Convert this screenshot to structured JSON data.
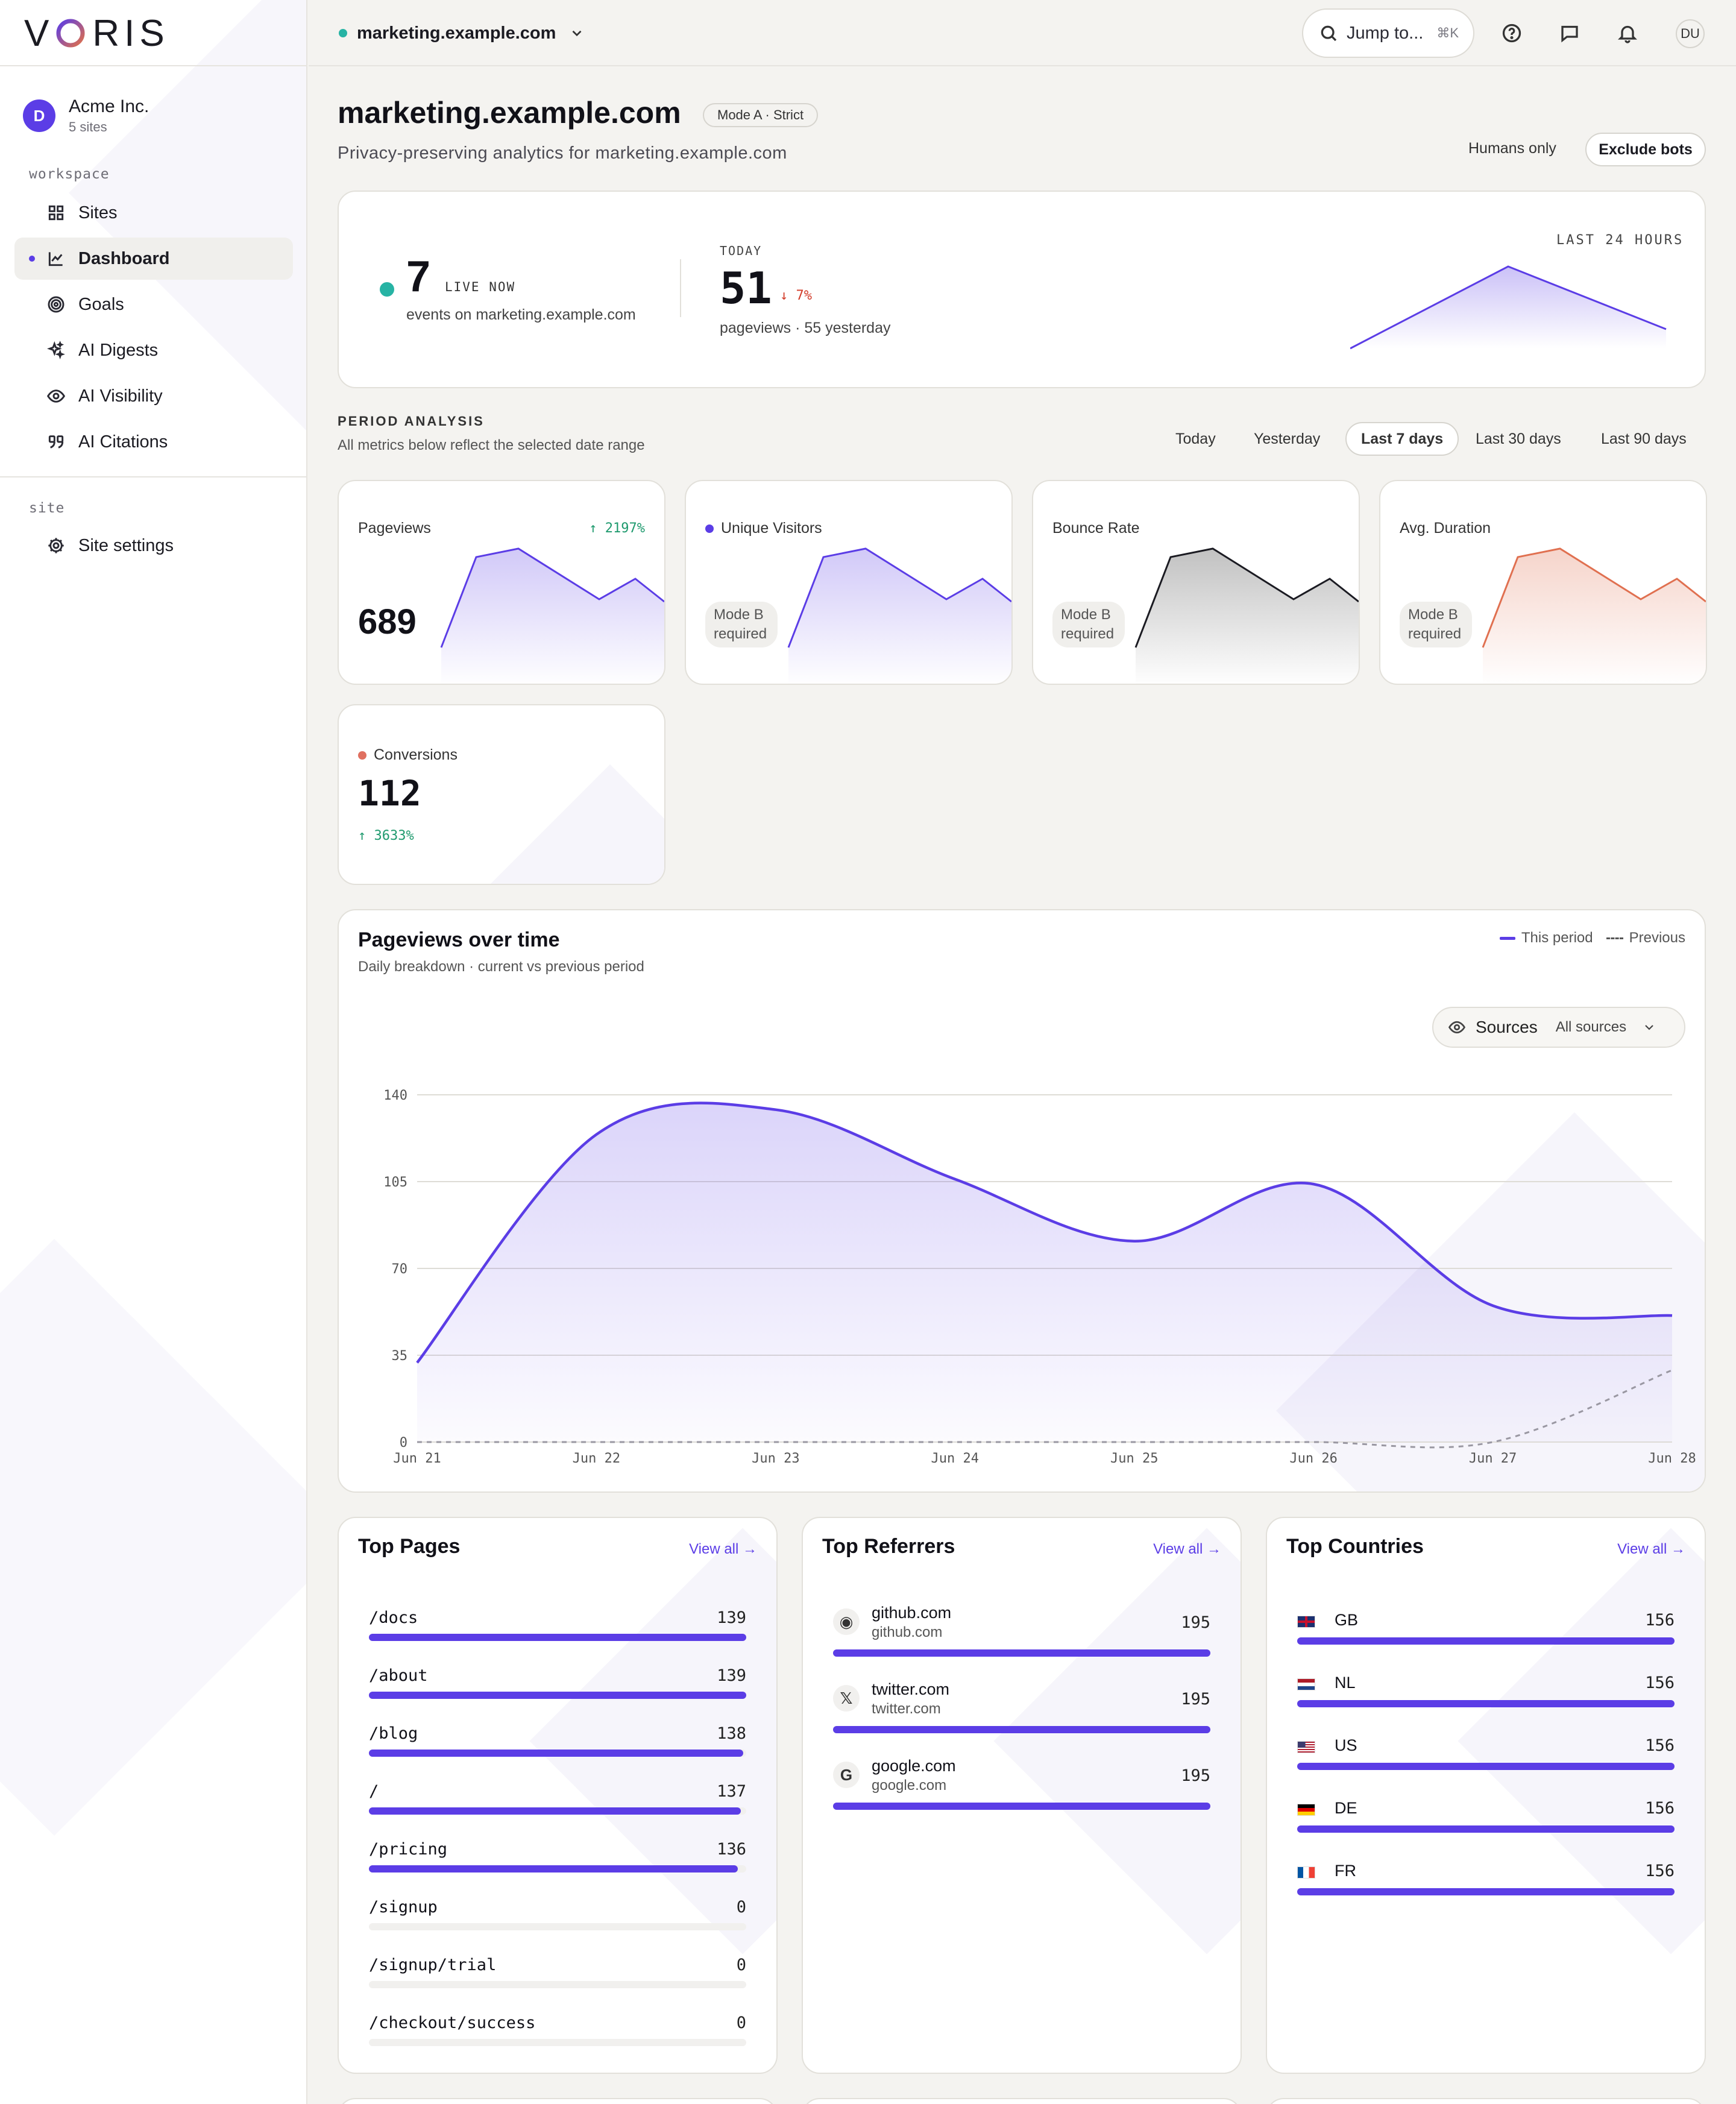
{
  "brand": {
    "name": "VORIS",
    "accent": "#5b3de6"
  },
  "org": {
    "initial": "D",
    "name": "Acme Inc.",
    "sites": "5 sites"
  },
  "sidebar": {
    "workspace_label": "workspace",
    "site_label": "site",
    "items": [
      {
        "label": "Sites",
        "icon": "grid-icon"
      },
      {
        "label": "Dashboard",
        "icon": "chart-line-icon",
        "active": true
      },
      {
        "label": "Goals",
        "icon": "target-icon"
      },
      {
        "label": "AI Digests",
        "icon": "sparkles-icon"
      },
      {
        "label": "AI Visibility",
        "icon": "eye-icon"
      },
      {
        "label": "AI Citations",
        "icon": "quote-icon"
      }
    ],
    "site_items": [
      {
        "label": "Site settings",
        "icon": "gear-icon"
      }
    ]
  },
  "topbar": {
    "site": "marketing.example.com",
    "jump_label": "Jump to...",
    "jump_shortcut": "⌘K",
    "user_initials": "DU"
  },
  "header": {
    "title": "marketing.example.com",
    "mode_badge": "Mode A · Strict",
    "subtitle": "Privacy-preserving analytics for marketing.example.com",
    "humans_only": "Humans only",
    "exclude_bots": "Exclude bots"
  },
  "live": {
    "count": "7",
    "label": "LIVE NOW",
    "sub": "events on marketing.example.com",
    "today_label": "TODAY",
    "today_count": "51",
    "today_delta": "↓ 7%",
    "today_sub": "pageviews · 55 yesterday",
    "last24_label": "LAST 24 HOURS"
  },
  "period": {
    "title": "PERIOD ANALYSIS",
    "subtitle": "All metrics below reflect the selected date range",
    "tabs": [
      "Today",
      "Yesterday",
      "Last 7 days",
      "Last 30 days",
      "Last 90 days"
    ],
    "active_tab": "Last 7 days"
  },
  "metrics": {
    "pageviews": {
      "label": "Pageviews",
      "value": "689",
      "delta": "↑ 2197%"
    },
    "visitors": {
      "label": "Unique Visitors",
      "note": "Mode B required"
    },
    "bounce": {
      "label": "Bounce Rate",
      "note": "Mode B required"
    },
    "duration": {
      "label": "Avg. Duration",
      "note": "Mode B required"
    },
    "conversions": {
      "label": "Conversions",
      "value": "112",
      "delta": "↑ 3633%"
    }
  },
  "pv_chart": {
    "title": "Pageviews over time",
    "subtitle": "Daily breakdown · current vs previous period",
    "legend_current": "This period",
    "legend_previous": "Previous",
    "sources_label": "Sources",
    "sources_value": "All sources"
  },
  "chart_data": {
    "type": "area",
    "x": [
      "Jun 21",
      "Jun 22",
      "Jun 23",
      "Jun 24",
      "Jun 25",
      "Jun 26",
      "Jun 27",
      "Jun 28"
    ],
    "series": [
      {
        "name": "This period",
        "values": [
          32,
          124,
          134,
          106,
          81,
          104,
          55,
          51
        ]
      },
      {
        "name": "Previous",
        "values": [
          0,
          0,
          0,
          0,
          0,
          0,
          0,
          29
        ]
      }
    ],
    "yticks": [
      0,
      35,
      70,
      105,
      140
    ],
    "ylim": [
      0,
      140
    ],
    "grid": true,
    "legend": "top-right"
  },
  "top_pages": {
    "title": "Top Pages",
    "view_all": "View all →",
    "rows": [
      {
        "label": "/docs",
        "value": 139
      },
      {
        "label": "/about",
        "value": 139
      },
      {
        "label": "/blog",
        "value": 138
      },
      {
        "label": "/",
        "value": 137
      },
      {
        "label": "/pricing",
        "value": 136
      },
      {
        "label": "/signup",
        "value": 0
      },
      {
        "label": "/signup/trial",
        "value": 0
      },
      {
        "label": "/checkout/success",
        "value": 0
      }
    ]
  },
  "top_referrers": {
    "title": "Top Referrers",
    "view_all": "View all →",
    "rows": [
      {
        "name": "github.com",
        "domain": "github.com",
        "value": 195,
        "icon": "github-icon"
      },
      {
        "name": "twitter.com",
        "domain": "twitter.com",
        "value": 195,
        "icon": "x-icon"
      },
      {
        "name": "google.com",
        "domain": "google.com",
        "value": 195,
        "icon": "google-icon"
      }
    ]
  },
  "top_countries": {
    "title": "Top Countries",
    "view_all": "View all →",
    "rows": [
      {
        "code": "GB",
        "value": 156
      },
      {
        "code": "NL",
        "value": 156
      },
      {
        "code": "US",
        "value": 156
      },
      {
        "code": "DE",
        "value": 156
      },
      {
        "code": "FR",
        "value": 156
      }
    ]
  }
}
